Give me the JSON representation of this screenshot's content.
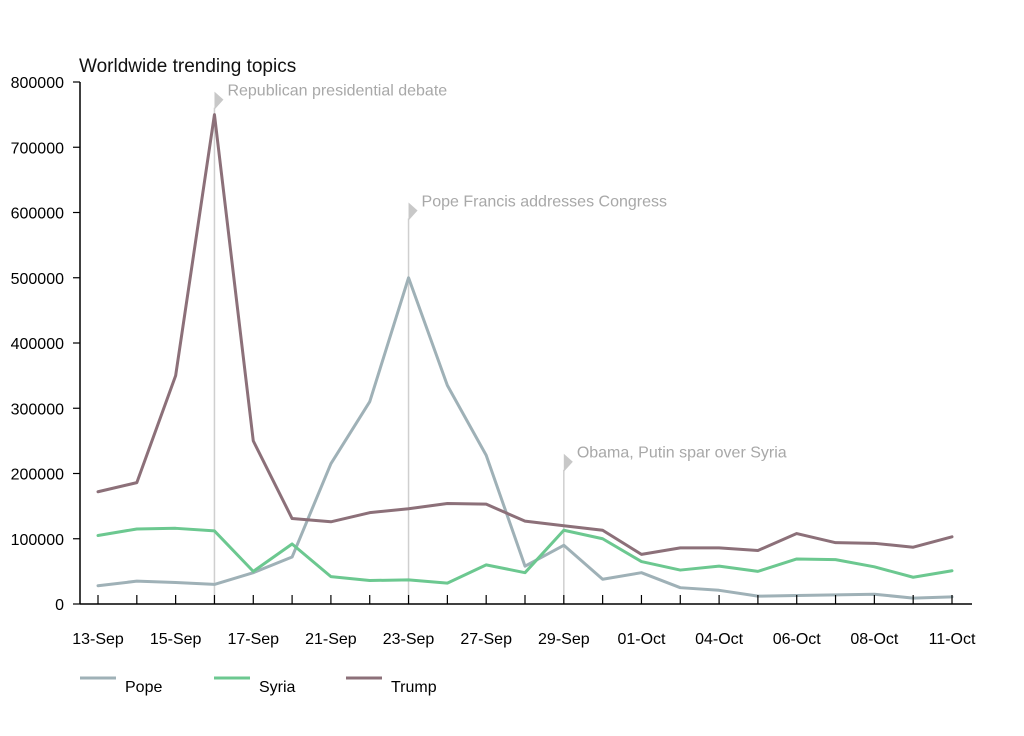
{
  "chart_data": {
    "type": "line",
    "title": "Worldwide trending topics",
    "xlabel": "",
    "ylabel": "",
    "ylim": [
      0,
      800000
    ],
    "yticks": [
      "0",
      "100000",
      "200000",
      "300000",
      "400000",
      "500000",
      "600000",
      "700000",
      "800000"
    ],
    "grid": false,
    "legend": "bottom",
    "x": [
      "13-Sep",
      "14-Sep",
      "15-Sep",
      "16-Sep",
      "17-Sep",
      "18-Sep",
      "21-Sep",
      "22-Sep",
      "23-Sep",
      "24-Sep",
      "27-Sep",
      "28-Sep",
      "29-Sep",
      "30-Sep",
      "01-Oct",
      "03-Oct",
      "04-Oct",
      "05-Oct",
      "06-Oct",
      "07-Oct",
      "08-Oct",
      "10-Oct",
      "11-Oct"
    ],
    "x_tick_labels": [
      "13-Sep",
      "15-Sep",
      "17-Sep",
      "21-Sep",
      "23-Sep",
      "27-Sep",
      "29-Sep",
      "01-Oct",
      "04-Oct",
      "06-Oct",
      "08-Oct",
      "11-Oct"
    ],
    "series": [
      {
        "name": "Pope",
        "color": "#9fb1b7",
        "values": [
          28000,
          35000,
          33000,
          30000,
          48000,
          72000,
          215000,
          310000,
          500000,
          335000,
          228000,
          58000,
          90000,
          38000,
          48000,
          25000,
          21000,
          12000,
          13000,
          14000,
          15000,
          9000,
          11000
        ]
      },
      {
        "name": "Syria",
        "color": "#6cc890",
        "values": [
          105000,
          115000,
          116000,
          112000,
          50000,
          92000,
          42000,
          36000,
          37000,
          32000,
          60000,
          48000,
          113000,
          100000,
          65000,
          52000,
          58000,
          50000,
          69000,
          68000,
          57000,
          41000,
          51000
        ]
      },
      {
        "name": "Trump",
        "color": "#8c7079",
        "values": [
          172000,
          186000,
          350000,
          750000,
          250000,
          131000,
          126000,
          140000,
          146000,
          154000,
          153000,
          127000,
          120000,
          113000,
          76000,
          86000,
          86000,
          82000,
          108000,
          94000,
          93000,
          87000,
          103000
        ]
      }
    ],
    "annotations": [
      {
        "text": "Republican presidential debate",
        "x": "16-Sep",
        "y": 770000
      },
      {
        "text": "Pope Francis addresses Congress",
        "x": "23-Sep",
        "y": 600000
      },
      {
        "text": "Obama, Putin spar over Syria",
        "x": "29-Sep",
        "y": 215000
      }
    ]
  }
}
